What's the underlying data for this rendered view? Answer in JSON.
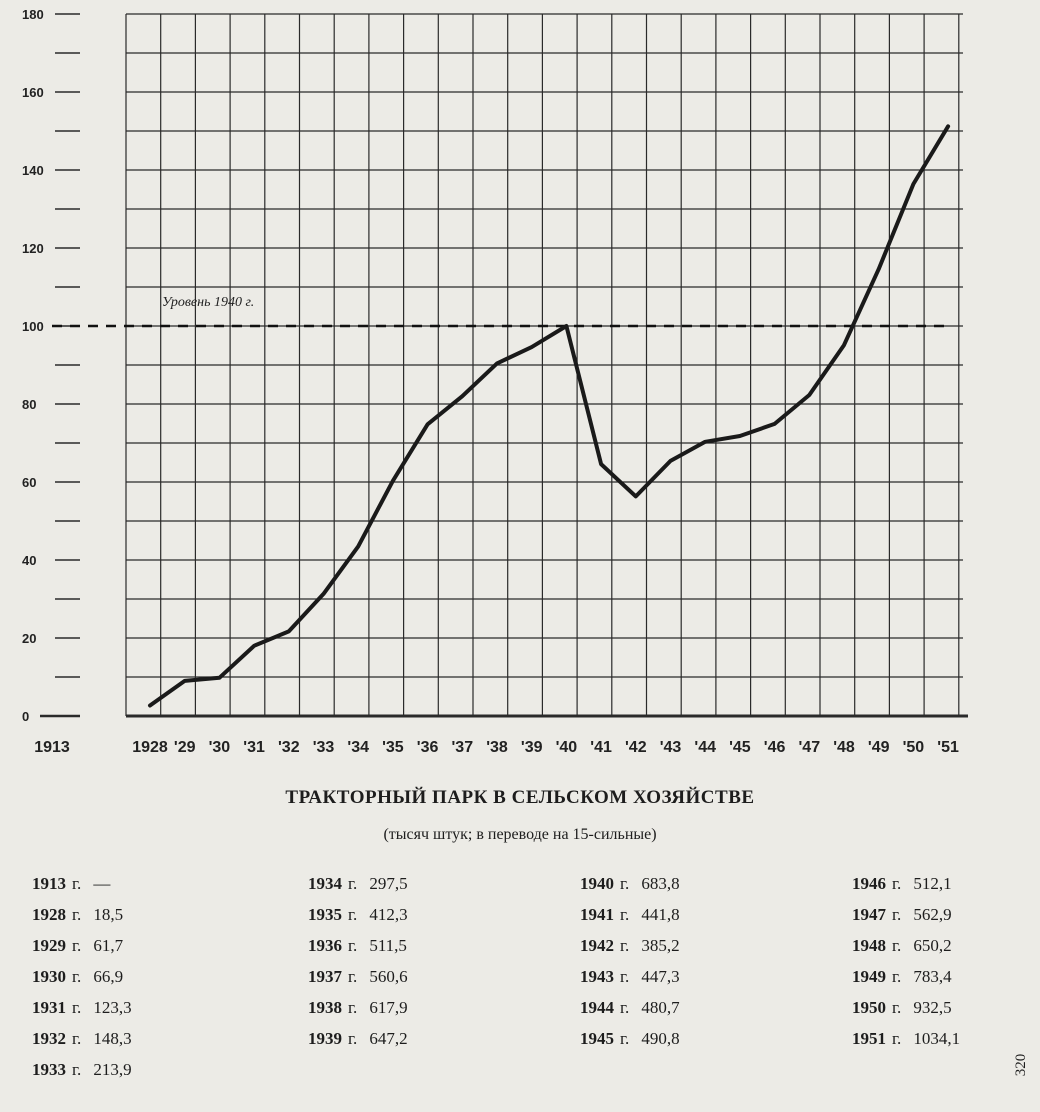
{
  "chart_data": {
    "type": "line",
    "title": "ТРАКТОРНЫЙ ПАРК В СЕЛЬСКОМ ХОЗЯЙСТВЕ",
    "subtitle": "(тысяч штук; в переводе на 15-сильные)",
    "reference_line": {
      "y": 100,
      "label": "Уровень 1940 г."
    },
    "y_ticks": [
      "0",
      "20",
      "40",
      "60",
      "80",
      "100",
      "120",
      "140",
      "160",
      "180"
    ],
    "ylim": [
      0,
      180
    ],
    "x_tick_labels": [
      "1913",
      "1928",
      "'29",
      "'30",
      "'31",
      "'32",
      "'33",
      "'34",
      "'35",
      "'36",
      "'37",
      "'38",
      "'39",
      "'40",
      "'41",
      "'42",
      "'43",
      "'44",
      "'45",
      "'46",
      "'47",
      "'48",
      "'49",
      "'50",
      "'51"
    ],
    "x": [
      1928,
      1929,
      1930,
      1931,
      1932,
      1933,
      1934,
      1935,
      1936,
      1937,
      1938,
      1939,
      1940,
      1941,
      1942,
      1943,
      1944,
      1945,
      1946,
      1947,
      1948,
      1949,
      1950,
      1951
    ],
    "values": [
      2.7,
      9,
      9.8,
      18,
      21.7,
      31.3,
      43.5,
      60.3,
      74.8,
      82,
      90.4,
      94.6,
      100,
      64.6,
      56.3,
      65.4,
      70.3,
      71.8,
      74.9,
      82.3,
      95.1,
      114.6,
      136.4,
      151.2
    ],
    "grid": true
  },
  "table": {
    "columns": [
      [
        {
          "year": "1913",
          "g": "г.",
          "value": "—"
        },
        {
          "year": "1928",
          "g": "г.",
          "value": "18,5"
        },
        {
          "year": "1929",
          "g": "г.",
          "value": "61,7"
        },
        {
          "year": "1930",
          "g": "г.",
          "value": "66,9"
        },
        {
          "year": "1931",
          "g": "г.",
          "value": "123,3"
        },
        {
          "year": "1932",
          "g": "г.",
          "value": "148,3"
        },
        {
          "year": "1933",
          "g": "г.",
          "value": "213,9"
        }
      ],
      [
        {
          "year": "1934",
          "g": "г.",
          "value": "297,5"
        },
        {
          "year": "1935",
          "g": "г.",
          "value": "412,3"
        },
        {
          "year": "1936",
          "g": "г.",
          "value": "511,5"
        },
        {
          "year": "1937",
          "g": "г.",
          "value": "560,6"
        },
        {
          "year": "1938",
          "g": "г.",
          "value": "617,9"
        },
        {
          "year": "1939",
          "g": "г.",
          "value": "647,2"
        }
      ],
      [
        {
          "year": "1940",
          "g": "г.",
          "value": "683,8"
        },
        {
          "year": "1941",
          "g": "г.",
          "value": "441,8"
        },
        {
          "year": "1942",
          "g": "г.",
          "value": "385,2"
        },
        {
          "year": "1943",
          "g": "г.",
          "value": "447,3"
        },
        {
          "year": "1944",
          "g": "г.",
          "value": "480,7"
        },
        {
          "year": "1945",
          "g": "г.",
          "value": "490,8"
        }
      ],
      [
        {
          "year": "1946",
          "g": "г.",
          "value": "512,1"
        },
        {
          "year": "1947",
          "g": "г.",
          "value": "562,9"
        },
        {
          "year": "1948",
          "g": "г.",
          "value": "650,2"
        },
        {
          "year": "1949",
          "g": "г.",
          "value": "783,4"
        },
        {
          "year": "1950",
          "g": "г.",
          "value": "932,5"
        },
        {
          "year": "1951",
          "g": "г.",
          "value": "1034,1"
        }
      ]
    ]
  },
  "page_number": "320",
  "colors": {
    "background": "#ecebe6",
    "ink": "#1d1d1d",
    "grid": "#2a2a2a",
    "line": "#1a1a1a"
  }
}
